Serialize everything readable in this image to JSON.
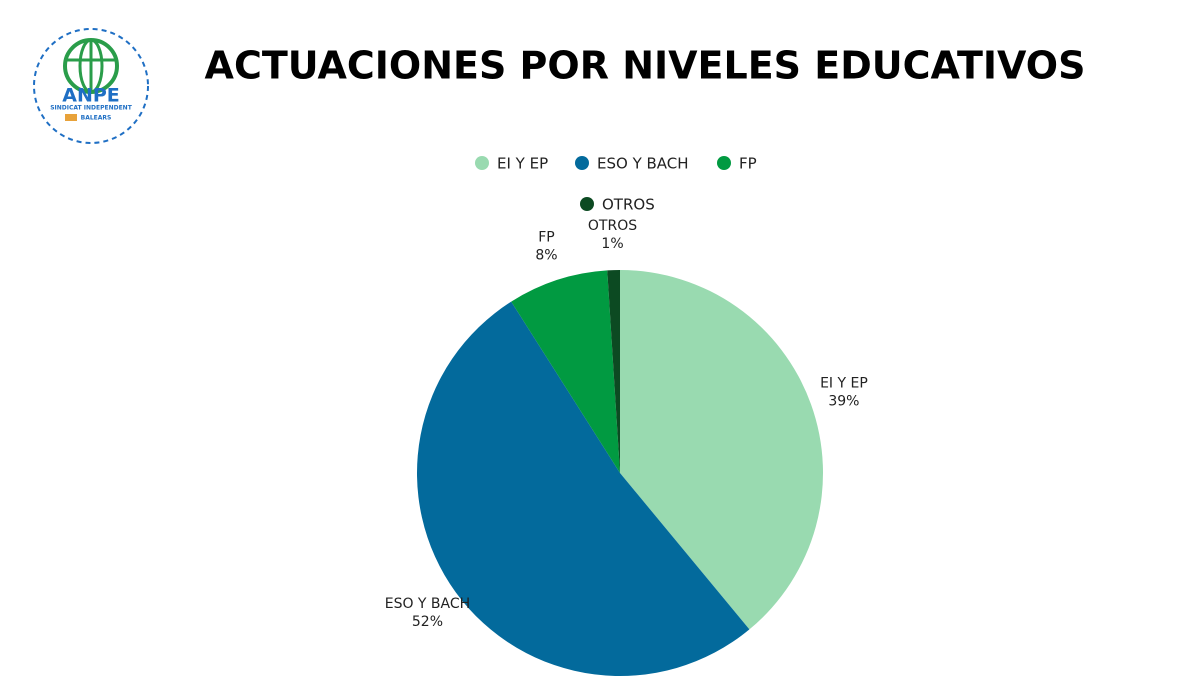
{
  "logo": {
    "name": "ANPE",
    "subtitle": "SINDICAT INDEPENDENT",
    "region": "BALEARS"
  },
  "chart_data": {
    "type": "pie",
    "title": "ACTUACIONES POR NIVELES EDUCATIVOS",
    "categories": [
      "EI Y EP",
      "ESO Y BACH",
      "FP",
      "OTROS"
    ],
    "values": [
      39,
      52,
      8,
      1
    ],
    "value_labels": [
      "39%",
      "52%",
      "8%",
      "1%"
    ],
    "colors": [
      "#99dab0",
      "#036a9c",
      "#019a41",
      "#0c4a22"
    ],
    "legend": "top"
  }
}
